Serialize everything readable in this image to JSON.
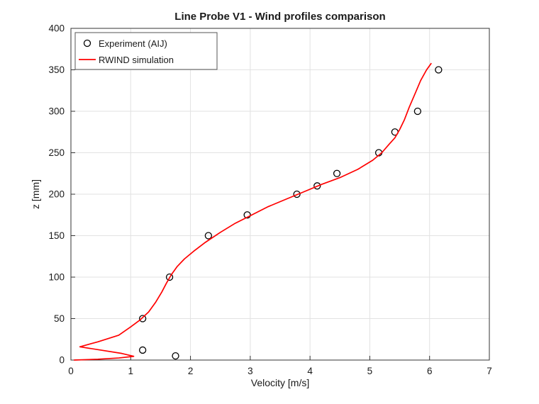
{
  "chart_data": {
    "type": "line",
    "title": "Line Probe V1 - Wind profiles comparison",
    "xlabel": "Velocity [m/s]",
    "ylabel": "z [mm]",
    "xlim": [
      0,
      7
    ],
    "ylim": [
      0,
      400
    ],
    "x_ticks": [
      0,
      1,
      2,
      3,
      4,
      5,
      6,
      7
    ],
    "y_ticks": [
      0,
      50,
      100,
      150,
      200,
      250,
      300,
      350,
      400
    ],
    "grid": true,
    "legend": [
      "Experiment (AIJ)",
      "RWIND simulation"
    ],
    "legend_position": "top-left",
    "colors": {
      "experiment_marker": "#000000",
      "simulation_line": "#ff0000",
      "grid": "#e2e2e2",
      "axis": "#333333",
      "text": "#1a1a1a"
    },
    "series": [
      {
        "name": "Experiment (AIJ)",
        "type": "scatter",
        "marker": "circle",
        "points": [
          [
            1.75,
            5
          ],
          [
            1.2,
            12
          ],
          [
            1.2,
            50
          ],
          [
            1.65,
            100
          ],
          [
            2.3,
            150
          ],
          [
            2.95,
            175
          ],
          [
            3.78,
            200
          ],
          [
            4.12,
            210
          ],
          [
            4.45,
            225
          ],
          [
            5.15,
            250
          ],
          [
            5.42,
            275
          ],
          [
            5.8,
            300
          ],
          [
            6.15,
            350
          ]
        ]
      },
      {
        "name": "RWIND simulation",
        "type": "line",
        "points": [
          [
            0.05,
            0
          ],
          [
            0.45,
            1
          ],
          [
            0.8,
            2.5
          ],
          [
            1.05,
            4.5
          ],
          [
            0.85,
            8
          ],
          [
            0.5,
            12
          ],
          [
            0.15,
            16
          ],
          [
            0.45,
            22
          ],
          [
            0.8,
            30
          ],
          [
            1.0,
            40
          ],
          [
            1.15,
            48
          ],
          [
            1.3,
            58
          ],
          [
            1.42,
            70
          ],
          [
            1.52,
            82
          ],
          [
            1.6,
            93
          ],
          [
            1.68,
            103
          ],
          [
            1.78,
            113
          ],
          [
            1.9,
            122
          ],
          [
            2.05,
            131
          ],
          [
            2.25,
            142
          ],
          [
            2.5,
            154
          ],
          [
            2.75,
            165
          ],
          [
            3.0,
            174
          ],
          [
            3.3,
            185
          ],
          [
            3.6,
            194
          ],
          [
            3.9,
            203
          ],
          [
            4.2,
            212
          ],
          [
            4.5,
            220
          ],
          [
            4.8,
            230
          ],
          [
            5.05,
            241
          ],
          [
            5.2,
            250
          ],
          [
            5.32,
            260
          ],
          [
            5.42,
            268
          ],
          [
            5.5,
            278
          ],
          [
            5.58,
            290
          ],
          [
            5.66,
            305
          ],
          [
            5.75,
            320
          ],
          [
            5.85,
            337
          ],
          [
            5.95,
            350
          ],
          [
            6.03,
            358
          ]
        ]
      }
    ]
  }
}
